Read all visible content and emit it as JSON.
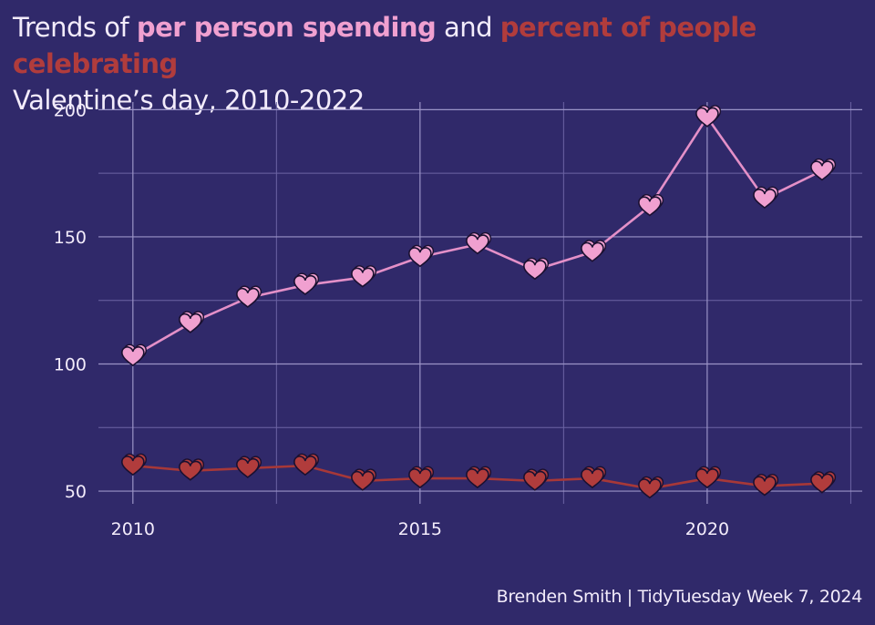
{
  "title": {
    "part1": "Trends of ",
    "highlight1": "per person spending",
    "part2": " and ",
    "highlight2": "percent of people celebrating",
    "line2": "Valentine’s day, 2010-2022"
  },
  "caption": "Brenden Smith | TidyTuesday Week 7, 2024",
  "colors": {
    "background": "#30296a",
    "spending": "#f0a0d0",
    "spending_line": "#e490c8",
    "percent": "#b13c3c",
    "percent_line": "#a73838",
    "grid": "#6c64a4",
    "text": "#f3ecfb"
  },
  "chart_data": {
    "type": "line",
    "marker": "heart-icon",
    "x": [
      2010,
      2011,
      2012,
      2013,
      2014,
      2015,
      2016,
      2017,
      2018,
      2019,
      2020,
      2021,
      2022
    ],
    "series": [
      {
        "name": "per person spending",
        "values": [
          103,
          116,
          126,
          131,
          134,
          142,
          147,
          137,
          144,
          162,
          197,
          165,
          176
        ]
      },
      {
        "name": "percent of people celebrating",
        "values": [
          60,
          58,
          59,
          60,
          54,
          55,
          55,
          54,
          55,
          51,
          55,
          52,
          53
        ]
      }
    ],
    "xlim": [
      2009.4,
      2022.7
    ],
    "ylim": [
      45,
      203
    ],
    "x_ticks": [
      2010,
      2015,
      2020
    ],
    "y_ticks": [
      50,
      100,
      150,
      200
    ],
    "x_tick_labels": [
      "2010",
      "2015",
      "2020"
    ],
    "y_tick_labels": [
      "50",
      "100",
      "150",
      "200"
    ],
    "grid": true,
    "legend": "title"
  }
}
